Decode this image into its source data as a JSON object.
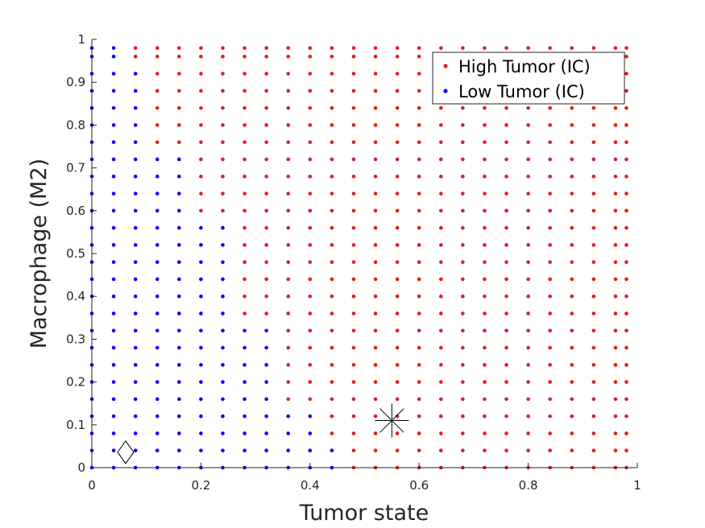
{
  "chart_data": {
    "type": "scatter",
    "title": "",
    "xlabel": "Tumor state",
    "ylabel": "Macrophage (M2)",
    "xlim": [
      0,
      1
    ],
    "ylim": [
      0,
      1
    ],
    "xticks": [
      0,
      0.2,
      0.4,
      0.6,
      0.8,
      1
    ],
    "yticks": [
      0,
      0.1,
      0.2,
      0.3,
      0.4,
      0.5,
      0.6,
      0.7,
      0.8,
      0.9,
      1
    ],
    "xtick_labels": [
      "0",
      "0.2",
      "0.4",
      "0.6",
      "0.8",
      "1"
    ],
    "ytick_labels": [
      "0",
      "0.1",
      "0.2",
      "0.3",
      "0.4",
      "0.5",
      "0.6",
      "0.7",
      "0.8",
      "0.9",
      "1"
    ],
    "grid": false,
    "legend_placement": "top-right",
    "grid_sampling": {
      "x_values": [
        0,
        0.04,
        0.08,
        0.12,
        0.16,
        0.2,
        0.24,
        0.28,
        0.32,
        0.36,
        0.4,
        0.44,
        0.48,
        0.52,
        0.56,
        0.6,
        0.64,
        0.68,
        0.72,
        0.76,
        0.8,
        0.84,
        0.88,
        0.92,
        0.96,
        0.98
      ],
      "y_values": [
        0,
        0.04,
        0.08,
        0.12,
        0.16,
        0.2,
        0.24,
        0.28,
        0.32,
        0.36,
        0.4,
        0.44,
        0.48,
        0.52,
        0.56,
        0.6,
        0.64,
        0.68,
        0.72,
        0.76,
        0.8,
        0.84,
        0.88,
        0.92,
        0.96,
        0.98
      ],
      "boundary_rule": "point is Low Tumor (IC) when x < threshold for its y",
      "threshold_by_y": [
        {
          "y_max": 0.06,
          "x_threshold": 0.46
        },
        {
          "y_max": 0.14,
          "x_threshold": 0.42
        },
        {
          "y_max": 0.34,
          "x_threshold": 0.34
        },
        {
          "y_max": 0.58,
          "x_threshold": 0.26
        },
        {
          "y_max": 0.74,
          "x_threshold": 0.18
        },
        {
          "y_max": 0.94,
          "x_threshold": 0.1
        },
        {
          "y_max": 1.0,
          "x_threshold": 0.06
        }
      ]
    },
    "series": [
      {
        "name": "High Tumor (IC)",
        "color": "#e41a1c",
        "marker": "dot"
      },
      {
        "name": "Low Tumor (IC)",
        "color": "#0000ff",
        "marker": "dot"
      }
    ],
    "annotations": [
      {
        "marker": "star-icon",
        "x": 0.55,
        "y": 0.11,
        "color": "#000000"
      },
      {
        "marker": "diamond-icon",
        "x": 0.062,
        "y": 0.036,
        "color": "#000000"
      }
    ]
  }
}
